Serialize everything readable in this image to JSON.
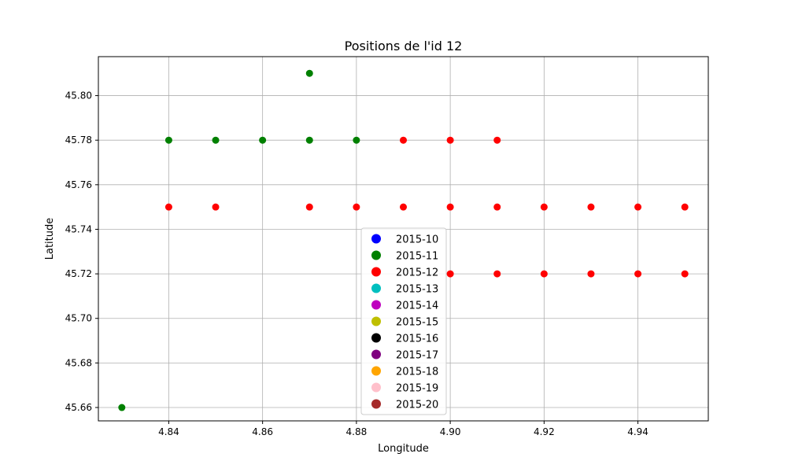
{
  "chart_data": {
    "type": "scatter",
    "title": "Positions de l'id 12",
    "xlabel": "Longitude",
    "ylabel": "Latitude",
    "xlim": [
      4.825,
      4.955
    ],
    "ylim": [
      45.654,
      45.8175
    ],
    "xticks": [
      {
        "value": 4.84,
        "label": "4.84"
      },
      {
        "value": 4.86,
        "label": "4.86"
      },
      {
        "value": 4.88,
        "label": "4.88"
      },
      {
        "value": 4.9,
        "label": "4.90"
      },
      {
        "value": 4.92,
        "label": "4.92"
      },
      {
        "value": 4.94,
        "label": "4.94"
      }
    ],
    "yticks": [
      {
        "value": 45.66,
        "label": "45.66"
      },
      {
        "value": 45.68,
        "label": "45.68"
      },
      {
        "value": 45.7,
        "label": "45.70"
      },
      {
        "value": 45.72,
        "label": "45.72"
      },
      {
        "value": 45.74,
        "label": "45.74"
      },
      {
        "value": 45.76,
        "label": "45.76"
      },
      {
        "value": 45.78,
        "label": "45.78"
      },
      {
        "value": 45.8,
        "label": "45.80"
      }
    ],
    "grid": true,
    "legend_position": "lower-center",
    "series": [
      {
        "name": "2015-10",
        "color": "#0000ff",
        "points": []
      },
      {
        "name": "2015-11",
        "color": "#008000",
        "points": [
          [
            4.83,
            45.66
          ],
          [
            4.84,
            45.78
          ],
          [
            4.85,
            45.78
          ],
          [
            4.86,
            45.78
          ],
          [
            4.87,
            45.81
          ],
          [
            4.87,
            45.78
          ],
          [
            4.88,
            45.78
          ]
        ]
      },
      {
        "name": "2015-12",
        "color": "#ff0000",
        "points": [
          [
            4.84,
            45.75
          ],
          [
            4.85,
            45.75
          ],
          [
            4.87,
            45.75
          ],
          [
            4.88,
            45.75
          ],
          [
            4.89,
            45.78
          ],
          [
            4.89,
            45.75
          ],
          [
            4.9,
            45.78
          ],
          [
            4.9,
            45.75
          ],
          [
            4.9,
            45.72
          ],
          [
            4.91,
            45.78
          ],
          [
            4.91,
            45.75
          ],
          [
            4.91,
            45.72
          ],
          [
            4.92,
            45.75
          ],
          [
            4.92,
            45.72
          ],
          [
            4.93,
            45.75
          ],
          [
            4.93,
            45.72
          ],
          [
            4.94,
            45.75
          ],
          [
            4.94,
            45.72
          ],
          [
            4.95,
            45.75
          ],
          [
            4.95,
            45.72
          ]
        ]
      },
      {
        "name": "2015-13",
        "color": "#00bfbf",
        "points": []
      },
      {
        "name": "2015-14",
        "color": "#bf00bf",
        "points": []
      },
      {
        "name": "2015-15",
        "color": "#bfbf00",
        "points": []
      },
      {
        "name": "2015-16",
        "color": "#000000",
        "points": []
      },
      {
        "name": "2015-17",
        "color": "#800080",
        "points": []
      },
      {
        "name": "2015-18",
        "color": "#ffa500",
        "points": []
      },
      {
        "name": "2015-19",
        "color": "#ffc0cb",
        "points": []
      },
      {
        "name": "2015-20",
        "color": "#a52a2a",
        "points": []
      }
    ]
  }
}
